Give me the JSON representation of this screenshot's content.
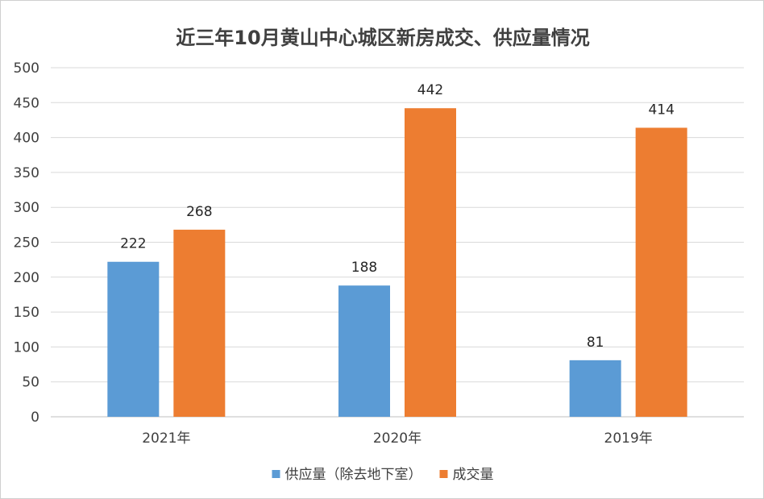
{
  "chart_data": {
    "type": "bar",
    "title": "近三年10月黄山中心城区新房成交、供应量情况",
    "categories": [
      "2021年",
      "2020年",
      "2019年"
    ],
    "series": [
      {
        "name": "供应量（除去地下室）",
        "values": [
          222,
          188,
          81
        ],
        "color": "#5B9BD5"
      },
      {
        "name": "成交量",
        "values": [
          268,
          442,
          414
        ],
        "color": "#ED7D31"
      }
    ],
    "ylim": [
      0,
      500
    ],
    "yticks": [
      0,
      50,
      100,
      150,
      200,
      250,
      300,
      350,
      400,
      450,
      500
    ],
    "grid": true,
    "legend_position": "bottom"
  }
}
